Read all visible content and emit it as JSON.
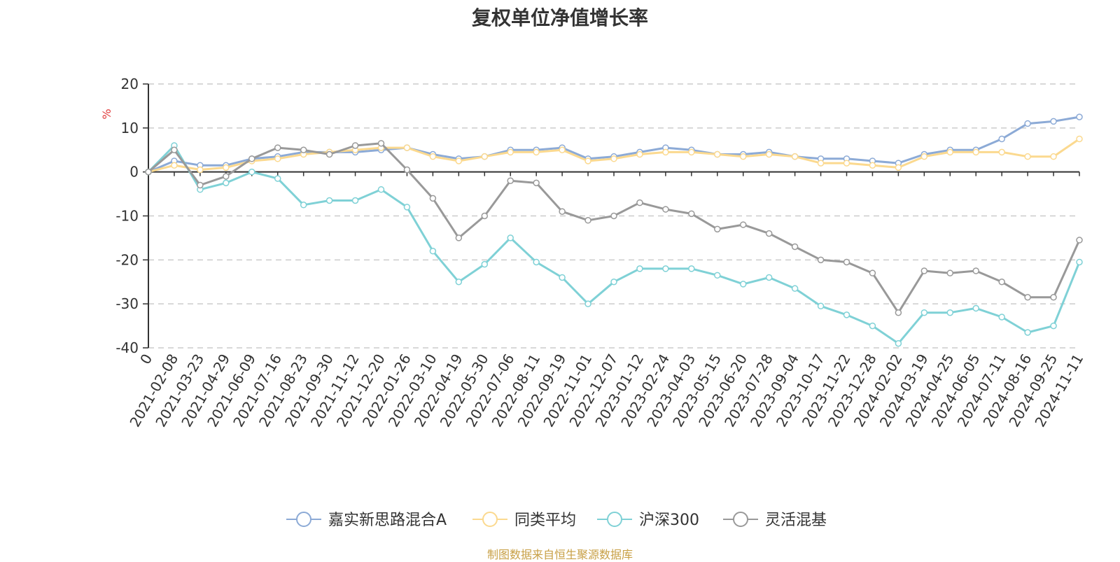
{
  "chart_data": {
    "type": "line",
    "title": "复权单位净值增长率",
    "ylabel": "%",
    "ylim": [
      -40,
      20
    ],
    "yticks": [
      -40,
      -30,
      -20,
      -10,
      0,
      10,
      20
    ],
    "grid": true,
    "legend_position": "bottom",
    "source": "制图数据来自恒生聚源数据库",
    "x_labels": [
      "0",
      "2021-02-08",
      "2021-03-23",
      "2021-04-29",
      "2021-06-09",
      "2021-07-16",
      "2021-08-23",
      "2021-09-30",
      "2021-11-12",
      "2021-12-20",
      "2022-01-26",
      "2022-03-10",
      "2022-04-19",
      "2022-05-30",
      "2022-07-06",
      "2022-08-11",
      "2022-09-19",
      "2022-11-01",
      "2022-12-07",
      "2023-01-12",
      "2023-02-24",
      "2023-04-03",
      "2023-05-15",
      "2023-06-20",
      "2023-07-28",
      "2023-09-04",
      "2023-10-17",
      "2023-11-22",
      "2023-12-28",
      "2024-02-02",
      "2024-03-19",
      "2024-04-25",
      "2024-06-05",
      "2024-07-11",
      "2024-08-16",
      "2024-09-25",
      "2024-11-11"
    ],
    "series": [
      {
        "name": "嘉实新思路混合A",
        "color": "#8caad6",
        "values": [
          0,
          2.5,
          1.5,
          1.5,
          3.0,
          3.5,
          4.5,
          4.5,
          4.5,
          5.0,
          5.5,
          4.0,
          3.0,
          3.5,
          5.0,
          5.0,
          5.5,
          3.0,
          3.5,
          4.5,
          5.5,
          5.0,
          4.0,
          4.0,
          4.5,
          3.5,
          3.0,
          3.0,
          2.5,
          2.0,
          4.0,
          5.0,
          5.0,
          7.5,
          11.0,
          11.5,
          12.5
        ]
      },
      {
        "name": "同类平均",
        "color": "#fbd98f",
        "values": [
          0,
          1.5,
          0.5,
          1.0,
          2.5,
          3.0,
          4.0,
          4.5,
          5.0,
          5.5,
          5.5,
          3.5,
          2.5,
          3.5,
          4.5,
          4.5,
          5.0,
          2.5,
          3.0,
          4.0,
          4.5,
          4.5,
          4.0,
          3.5,
          4.0,
          3.5,
          2.0,
          2.0,
          1.5,
          1.0,
          3.5,
          4.5,
          4.5,
          4.5,
          3.5,
          3.5,
          7.5
        ]
      },
      {
        "name": "沪深300",
        "color": "#7fd1d6",
        "values": [
          0,
          6.0,
          -4.0,
          -2.5,
          0,
          -1.5,
          -7.5,
          -6.5,
          -6.5,
          -4.0,
          -8.0,
          -18.0,
          -25.0,
          -21.0,
          -15.0,
          -20.5,
          -24.0,
          -30.0,
          -25.0,
          -22.0,
          -22.0,
          -22.0,
          -23.5,
          -25.5,
          -24.0,
          -26.5,
          -30.5,
          -32.5,
          -35.0,
          -39.0,
          -32.0,
          -32.0,
          -31.0,
          -33.0,
          -36.5,
          -35.0,
          -20.5
        ]
      },
      {
        "name": "灵活混基",
        "color": "#999999",
        "values": [
          0,
          5.0,
          -3.0,
          -1.0,
          3.0,
          5.5,
          5.0,
          4.0,
          6.0,
          6.5,
          0.5,
          -6.0,
          -15.0,
          -10.0,
          -2.0,
          -2.5,
          -9.0,
          -11.0,
          -10.0,
          -7.0,
          -8.5,
          -9.5,
          -13.0,
          -12.0,
          -14.0,
          -17.0,
          -20.0,
          -20.5,
          -23.0,
          -32.0,
          -22.5,
          -23.0,
          -22.5,
          -25.0,
          -28.5,
          -28.5,
          -15.5
        ]
      }
    ]
  }
}
